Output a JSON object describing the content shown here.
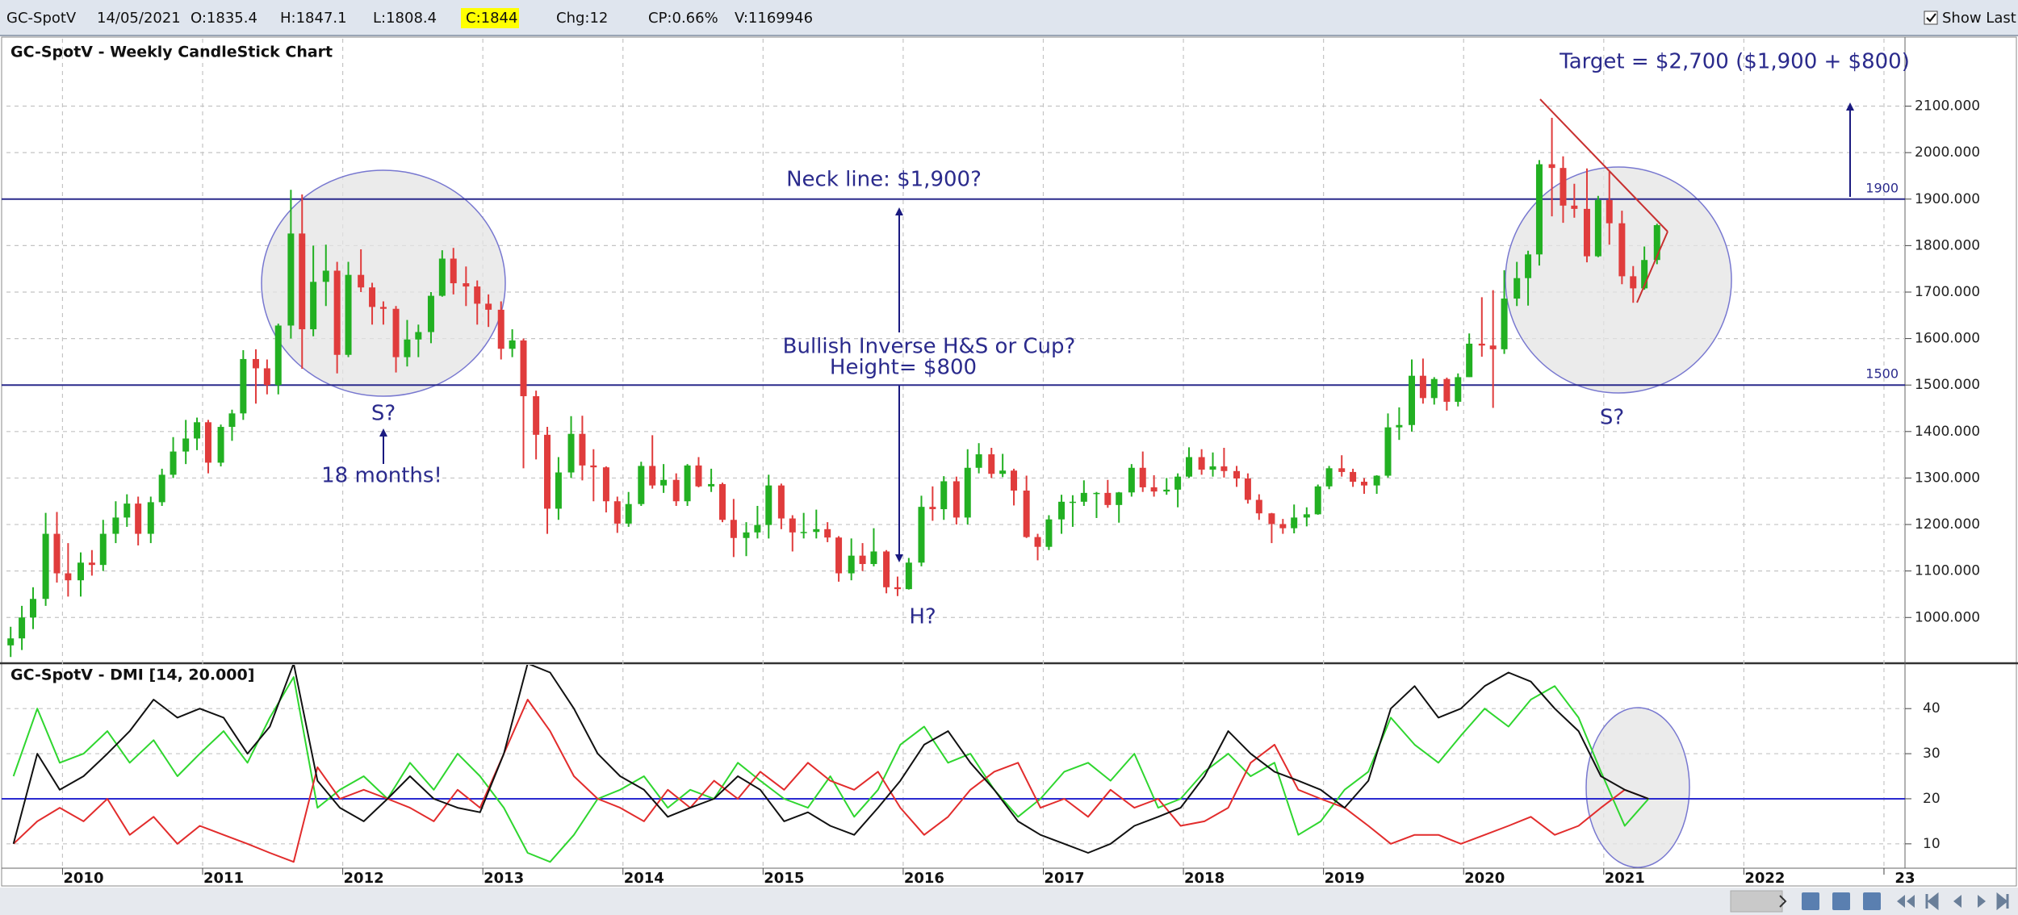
{
  "header": {
    "symbol": "GC-SpotV",
    "date": "14/05/2021",
    "open": "O:1835.4",
    "high": "H:1847.1",
    "low": "L:1808.4",
    "close": "C:1844",
    "change": "Chg:12",
    "change_pct": "CP:0.66%",
    "volume": "V:1169946",
    "show_last": "Show Last"
  },
  "chart_data": [
    {
      "type": "candlestick",
      "title": "GC-SpotV - Weekly CandleStick Chart",
      "x": [
        2009.63,
        2009.71,
        2009.79,
        2009.88,
        2009.96,
        2010.04,
        2010.13,
        2010.21,
        2010.29,
        2010.38,
        2010.46,
        2010.54,
        2010.63,
        2010.71,
        2010.79,
        2010.88,
        2010.96,
        2011.04,
        2011.13,
        2011.21,
        2011.29,
        2011.38,
        2011.46,
        2011.54,
        2011.63,
        2011.71,
        2011.79,
        2011.88,
        2011.96,
        2012.04,
        2012.13,
        2012.21,
        2012.29,
        2012.38,
        2012.46,
        2012.54,
        2012.63,
        2012.71,
        2012.79,
        2012.88,
        2012.96,
        2013.04,
        2013.13,
        2013.21,
        2013.29,
        2013.38,
        2013.46,
        2013.54,
        2013.63,
        2013.71,
        2013.79,
        2013.88,
        2013.96,
        2014.04,
        2014.13,
        2014.21,
        2014.29,
        2014.38,
        2014.46,
        2014.54,
        2014.63,
        2014.71,
        2014.79,
        2014.88,
        2014.96,
        2015.04,
        2015.13,
        2015.21,
        2015.29,
        2015.38,
        2015.46,
        2015.54,
        2015.63,
        2015.71,
        2015.79,
        2015.88,
        2015.96,
        2016.04,
        2016.13,
        2016.21,
        2016.29,
        2016.38,
        2016.46,
        2016.54,
        2016.63,
        2016.71,
        2016.79,
        2016.88,
        2016.96,
        2017.04,
        2017.13,
        2017.21,
        2017.29,
        2017.38,
        2017.46,
        2017.54,
        2017.63,
        2017.71,
        2017.79,
        2017.88,
        2017.96,
        2018.04,
        2018.13,
        2018.21,
        2018.29,
        2018.38,
        2018.46,
        2018.54,
        2018.63,
        2018.71,
        2018.79,
        2018.88,
        2018.96,
        2019.04,
        2019.13,
        2019.21,
        2019.29,
        2019.38,
        2019.46,
        2019.54,
        2019.63,
        2019.71,
        2019.79,
        2019.88,
        2019.96,
        2020.04,
        2020.13,
        2020.21,
        2020.29,
        2020.38,
        2020.46,
        2020.54,
        2020.63,
        2020.71,
        2020.79,
        2020.88,
        2020.96,
        2021.04,
        2021.13,
        2021.21,
        2021.29,
        2021.38
      ],
      "open": [
        940,
        955,
        1000,
        1040,
        1180,
        1095,
        1080,
        1118,
        1113,
        1180,
        1215,
        1245,
        1180,
        1248,
        1307,
        1357,
        1385,
        1420,
        1333,
        1410,
        1439,
        1556,
        1536,
        1500,
        1628,
        1826,
        1620,
        1722,
        1746,
        1565,
        1737,
        1710,
        1668,
        1664,
        1560,
        1598,
        1614,
        1692,
        1772,
        1719,
        1712,
        1675,
        1662,
        1578,
        1596,
        1476,
        1393,
        1234,
        1312,
        1395,
        1327,
        1323,
        1250,
        1202,
        1244,
        1326,
        1284,
        1296,
        1250,
        1327,
        1282,
        1287,
        1210,
        1171,
        1183,
        1199,
        1284,
        1213,
        1183,
        1184,
        1190,
        1172,
        1095,
        1133,
        1115,
        1142,
        1065,
        1061,
        1118,
        1238,
        1233,
        1293,
        1215,
        1322,
        1351,
        1309,
        1316,
        1273,
        1173,
        1152,
        1211,
        1249,
        1249,
        1268,
        1268,
        1242,
        1269,
        1322,
        1280,
        1271,
        1275,
        1303,
        1345,
        1318,
        1325,
        1315,
        1299,
        1253,
        1224,
        1201,
        1192,
        1215,
        1222,
        1282,
        1321,
        1313,
        1292,
        1284,
        1305,
        1409,
        1414,
        1520,
        1472,
        1513,
        1464,
        1517,
        1589,
        1585,
        1577,
        1686,
        1730,
        1781,
        1975,
        1967,
        1886,
        1879,
        1777,
        1898,
        1848,
        1734,
        1708,
        1769
      ],
      "high": [
        980,
        1025,
        1065,
        1225,
        1227,
        1160,
        1140,
        1145,
        1210,
        1250,
        1265,
        1260,
        1260,
        1320,
        1388,
        1425,
        1430,
        1425,
        1415,
        1447,
        1575,
        1577,
        1555,
        1632,
        1920,
        1910,
        1800,
        1802,
        1765,
        1765,
        1792,
        1720,
        1680,
        1670,
        1640,
        1630,
        1700,
        1790,
        1795,
        1755,
        1725,
        1695,
        1680,
        1620,
        1600,
        1488,
        1410,
        1345,
        1433,
        1434,
        1362,
        1325,
        1260,
        1270,
        1335,
        1392,
        1330,
        1310,
        1330,
        1345,
        1320,
        1290,
        1255,
        1205,
        1240,
        1307,
        1288,
        1220,
        1225,
        1232,
        1205,
        1175,
        1170,
        1160,
        1192,
        1145,
        1088,
        1128,
        1262,
        1282,
        1304,
        1303,
        1362,
        1375,
        1365,
        1352,
        1320,
        1305,
        1180,
        1220,
        1264,
        1263,
        1295,
        1270,
        1296,
        1270,
        1330,
        1357,
        1306,
        1300,
        1310,
        1366,
        1362,
        1355,
        1365,
        1326,
        1310,
        1265,
        1225,
        1212,
        1243,
        1237,
        1286,
        1326,
        1349,
        1320,
        1300,
        1306,
        1439,
        1452,
        1555,
        1557,
        1517,
        1516,
        1525,
        1611,
        1689,
        1704,
        1747,
        1765,
        1789,
        1984,
        2075,
        1992,
        1933,
        1966,
        1907,
        1959,
        1875,
        1756,
        1798,
        1847
      ],
      "low": [
        915,
        930,
        975,
        1025,
        1075,
        1045,
        1045,
        1090,
        1100,
        1160,
        1195,
        1155,
        1160,
        1240,
        1300,
        1330,
        1360,
        1310,
        1325,
        1380,
        1425,
        1460,
        1480,
        1480,
        1600,
        1535,
        1605,
        1670,
        1525,
        1560,
        1700,
        1630,
        1630,
        1527,
        1540,
        1560,
        1590,
        1690,
        1695,
        1670,
        1630,
        1625,
        1555,
        1560,
        1321,
        1340,
        1180,
        1210,
        1300,
        1295,
        1250,
        1226,
        1182,
        1195,
        1240,
        1277,
        1268,
        1240,
        1240,
        1280,
        1270,
        1205,
        1130,
        1132,
        1170,
        1170,
        1190,
        1142,
        1170,
        1170,
        1162,
        1077,
        1080,
        1100,
        1110,
        1052,
        1046,
        1060,
        1110,
        1208,
        1210,
        1200,
        1200,
        1310,
        1300,
        1302,
        1241,
        1171,
        1123,
        1145,
        1180,
        1195,
        1240,
        1214,
        1236,
        1204,
        1260,
        1270,
        1260,
        1264,
        1237,
        1300,
        1307,
        1303,
        1301,
        1281,
        1245,
        1210,
        1160,
        1180,
        1181,
        1196,
        1221,
        1276,
        1303,
        1281,
        1266,
        1266,
        1301,
        1382,
        1400,
        1460,
        1458,
        1445,
        1454,
        1517,
        1561,
        1451,
        1567,
        1670,
        1671,
        1757,
        1863,
        1849,
        1860,
        1764,
        1775,
        1802,
        1717,
        1677,
        1705,
        1760
      ],
      "close": [
        955,
        1000,
        1040,
        1180,
        1095,
        1080,
        1118,
        1113,
        1180,
        1215,
        1245,
        1180,
        1248,
        1307,
        1357,
        1385,
        1420,
        1333,
        1410,
        1439,
        1556,
        1536,
        1500,
        1628,
        1826,
        1620,
        1722,
        1746,
        1565,
        1737,
        1710,
        1668,
        1664,
        1560,
        1598,
        1614,
        1692,
        1772,
        1719,
        1712,
        1675,
        1662,
        1578,
        1596,
        1476,
        1393,
        1234,
        1312,
        1395,
        1327,
        1323,
        1250,
        1202,
        1244,
        1326,
        1284,
        1296,
        1250,
        1327,
        1282,
        1287,
        1210,
        1171,
        1183,
        1199,
        1284,
        1213,
        1183,
        1184,
        1190,
        1172,
        1095,
        1133,
        1115,
        1142,
        1065,
        1061,
        1118,
        1238,
        1233,
        1293,
        1215,
        1322,
        1351,
        1309,
        1316,
        1273,
        1173,
        1152,
        1211,
        1249,
        1249,
        1268,
        1268,
        1242,
        1269,
        1322,
        1280,
        1271,
        1275,
        1303,
        1345,
        1318,
        1325,
        1315,
        1299,
        1253,
        1224,
        1201,
        1192,
        1215,
        1222,
        1282,
        1321,
        1313,
        1292,
        1284,
        1305,
        1409,
        1414,
        1520,
        1472,
        1513,
        1464,
        1517,
        1589,
        1585,
        1577,
        1686,
        1730,
        1781,
        1975,
        1967,
        1886,
        1879,
        1777,
        1898,
        1848,
        1734,
        1708,
        1769,
        1844
      ],
      "up_color": "#22b022",
      "down_color": "#e03c3c",
      "xlim": [
        2009.6,
        2023.15
      ],
      "ylim": [
        905,
        2245
      ],
      "yticks": [
        {
          "value": 1000,
          "label": "1000.000"
        },
        {
          "value": 1100,
          "label": "1100.000"
        },
        {
          "value": 1200,
          "label": "1200.000"
        },
        {
          "value": 1300,
          "label": "1300.000"
        },
        {
          "value": 1400,
          "label": "1400.000"
        },
        {
          "value": 1500,
          "label": "1500.000"
        },
        {
          "value": 1600,
          "label": "1600.000"
        },
        {
          "value": 1700,
          "label": "1700.000"
        },
        {
          "value": 1800,
          "label": "1800.000"
        },
        {
          "value": 1900,
          "label": "1900.000"
        },
        {
          "value": 2000,
          "label": "2000.000"
        },
        {
          "value": 2100,
          "label": "2100.000"
        }
      ],
      "grid": true,
      "reference_lines": [
        1900,
        1500
      ],
      "reference_color": "#2a2a8c",
      "annotations": [
        "Neck line: $1,900?",
        "Bullish Inverse H&S or Cup?",
        "Height= $800",
        "S?",
        "18 months!",
        "H?",
        "S?",
        "Target = $2,700 ($1,900 + $800)"
      ]
    },
    {
      "type": "line",
      "title": "GC-SpotV - DMI [14, 20.000]",
      "x": [
        2009.65,
        2009.82,
        2009.98,
        2010.15,
        2010.32,
        2010.48,
        2010.65,
        2010.82,
        2010.98,
        2011.15,
        2011.32,
        2011.48,
        2011.65,
        2011.82,
        2011.98,
        2012.15,
        2012.32,
        2012.48,
        2012.65,
        2012.82,
        2012.98,
        2013.15,
        2013.32,
        2013.48,
        2013.65,
        2013.82,
        2013.98,
        2014.15,
        2014.32,
        2014.48,
        2014.65,
        2014.82,
        2014.98,
        2015.15,
        2015.32,
        2015.48,
        2015.65,
        2015.82,
        2015.98,
        2016.15,
        2016.32,
        2016.48,
        2016.65,
        2016.82,
        2016.98,
        2017.15,
        2017.32,
        2017.48,
        2017.65,
        2017.82,
        2017.98,
        2018.15,
        2018.32,
        2018.48,
        2018.65,
        2018.82,
        2018.98,
        2019.15,
        2019.32,
        2019.48,
        2019.65,
        2019.82,
        2019.98,
        2020.15,
        2020.32,
        2020.48,
        2020.65,
        2020.82,
        2020.98,
        2021.15,
        2021.32
      ],
      "series": [
        {
          "color": "#2fd62f",
          "values": [
            25,
            40,
            28,
            30,
            35,
            28,
            33,
            25,
            30,
            35,
            28,
            38,
            47,
            18,
            22,
            25,
            20,
            28,
            22,
            30,
            25,
            18,
            8,
            6,
            12,
            20,
            22,
            25,
            18,
            22,
            20,
            28,
            24,
            20,
            18,
            25,
            16,
            22,
            32,
            36,
            28,
            30,
            22,
            16,
            20,
            26,
            28,
            24,
            30,
            18,
            20,
            26,
            30,
            25,
            28,
            12,
            15,
            22,
            26,
            38,
            32,
            28,
            34,
            40,
            36,
            42,
            45,
            38,
            26,
            14,
            20
          ]
        },
        {
          "color": "#e22c2c",
          "values": [
            10,
            15,
            18,
            15,
            20,
            12,
            16,
            10,
            14,
            12,
            10,
            8,
            6,
            27,
            20,
            22,
            20,
            18,
            15,
            22,
            18,
            30,
            42,
            35,
            25,
            20,
            18,
            15,
            22,
            18,
            24,
            20,
            26,
            22,
            28,
            24,
            22,
            26,
            18,
            12,
            16,
            22,
            26,
            28,
            18,
            20,
            16,
            22,
            18,
            20,
            14,
            15,
            18,
            28,
            32,
            22,
            20,
            18,
            14,
            10,
            12,
            12,
            10,
            12,
            14,
            16,
            12,
            14,
            18,
            22,
            20
          ]
        },
        {
          "color": "#111111",
          "values": [
            10,
            30,
            22,
            25,
            30,
            35,
            42,
            38,
            40,
            38,
            30,
            36,
            50,
            24,
            18,
            15,
            20,
            25,
            20,
            18,
            17,
            30,
            50,
            48,
            40,
            30,
            25,
            22,
            16,
            18,
            20,
            25,
            22,
            15,
            17,
            14,
            12,
            18,
            24,
            32,
            35,
            28,
            22,
            15,
            12,
            10,
            8,
            10,
            14,
            16,
            18,
            25,
            35,
            30,
            26,
            24,
            22,
            18,
            24,
            40,
            45,
            38,
            40,
            45,
            48,
            46,
            40,
            35,
            25,
            22,
            20
          ]
        }
      ],
      "xlim": [
        2009.6,
        2023.15
      ],
      "xticks": [
        2010,
        2011,
        2012,
        2013,
        2014,
        2015,
        2016,
        2017,
        2018,
        2019,
        2020,
        2021,
        2022,
        {
          "value": 2023,
          "label": "23"
        }
      ],
      "ylim": [
        4.6,
        49.7
      ],
      "yticks": [
        10,
        20,
        30,
        40
      ],
      "grid": true,
      "threshold": 20,
      "threshold_color": "#2a2ad0"
    }
  ]
}
